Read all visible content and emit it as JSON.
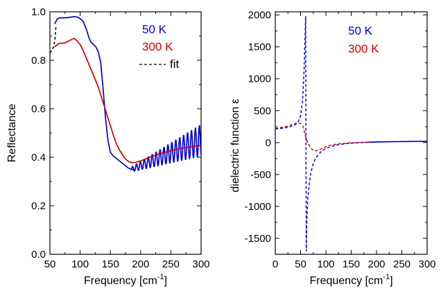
{
  "chart_data": [
    {
      "type": "line",
      "xlabel": "Frequency [cm",
      "xlabel_sup": "-1",
      "xlabel_tail": "]",
      "ylabel": "Reflectance",
      "xlim": [
        50,
        300
      ],
      "ylim": [
        0.0,
        1.0
      ],
      "xticks": [
        50,
        100,
        150,
        200,
        250,
        300
      ],
      "xtick_labels": [
        "50",
        "100",
        "150",
        "200",
        "250",
        "300"
      ],
      "yticks": [
        0.0,
        0.2,
        0.4,
        0.6,
        0.8,
        1.0
      ],
      "ytick_labels": [
        "0.0",
        "0.2",
        "0.4",
        "0.6",
        "0.8",
        "1.0"
      ],
      "legend_position": "top-right",
      "series": [
        {
          "name": "50 K",
          "color": "#0000cc",
          "style": "solid",
          "x": [
            58,
            62,
            66,
            70,
            75,
            80,
            85,
            90,
            95,
            100,
            105,
            110,
            115,
            118,
            122,
            126,
            130,
            134,
            138,
            142,
            146,
            150,
            155,
            160,
            165,
            170,
            175,
            180,
            185,
            190
          ],
          "y": [
            0.95,
            0.97,
            0.975,
            0.975,
            0.975,
            0.976,
            0.978,
            0.98,
            0.978,
            0.972,
            0.96,
            0.93,
            0.89,
            0.875,
            0.865,
            0.855,
            0.835,
            0.79,
            0.68,
            0.56,
            0.47,
            0.42,
            0.405,
            0.395,
            0.385,
            0.375,
            0.365,
            0.355,
            0.35,
            0.345
          ],
          "oscillation": {
            "x_start": 185,
            "x_end": 300,
            "period": 6.5,
            "center_start": 0.35,
            "center_end": 0.47,
            "amplitude_start": 0.01,
            "amplitude_end": 0.065
          }
        },
        {
          "name": "300 K",
          "color": "#cc0000",
          "style": "solid",
          "x": [
            58,
            62,
            66,
            70,
            75,
            80,
            85,
            90,
            95,
            100,
            105,
            110,
            115,
            120,
            125,
            130,
            135,
            140,
            145,
            150,
            155,
            160,
            165,
            170,
            175,
            180,
            185,
            190,
            200,
            210,
            220,
            230,
            240,
            250,
            260,
            270,
            280,
            290,
            300
          ],
          "y": [
            0.855,
            0.865,
            0.87,
            0.87,
            0.872,
            0.878,
            0.885,
            0.89,
            0.88,
            0.865,
            0.84,
            0.81,
            0.78,
            0.75,
            0.72,
            0.69,
            0.65,
            0.61,
            0.57,
            0.53,
            0.49,
            0.455,
            0.43,
            0.41,
            0.393,
            0.382,
            0.378,
            0.378,
            0.385,
            0.395,
            0.405,
            0.413,
            0.42,
            0.427,
            0.433,
            0.438,
            0.442,
            0.446,
            0.449
          ]
        },
        {
          "name": "fit",
          "color": "#000000",
          "style": "dashed",
          "x": [
            50,
            53,
            56,
            58,
            60
          ],
          "y": [
            0.83,
            0.84,
            0.855,
            0.88,
            0.94
          ]
        }
      ]
    },
    {
      "type": "line",
      "xlabel": "Frequency [cm",
      "xlabel_sup": "-1",
      "xlabel_tail": "]",
      "ylabel": "dielectric function ε",
      "xlim": [
        0,
        300
      ],
      "ylim": [
        -1750,
        2050
      ],
      "xticks": [
        0,
        50,
        100,
        150,
        200,
        250,
        300
      ],
      "xtick_labels": [
        "0",
        "50",
        "100",
        "150",
        "200",
        "250",
        "300"
      ],
      "yticks": [
        -1500,
        -1000,
        -500,
        0,
        500,
        1000,
        1500,
        2000
      ],
      "ytick_labels": [
        "-1500",
        "-1000",
        "-500",
        "0",
        "500",
        "1000",
        "1500",
        "2000"
      ],
      "legend_position": "top-right",
      "series": [
        {
          "name": "50 K",
          "color": "#0000cc",
          "style": "dashed",
          "x": [
            0,
            10,
            20,
            30,
            40,
            45,
            50,
            54,
            57,
            59,
            60,
            60.6,
            61.2,
            62,
            64,
            67,
            70,
            75,
            80,
            90,
            100,
            120,
            140,
            160,
            180
          ],
          "y": [
            215,
            220,
            232,
            250,
            285,
            320,
            420,
            660,
            1150,
            1700,
            1980,
            0,
            -1700,
            -1300,
            -900,
            -650,
            -480,
            -330,
            -240,
            -145,
            -90,
            -40,
            -15,
            -2,
            5
          ]
        },
        {
          "name": "50 K",
          "color": "#0000cc",
          "style": "solid",
          "x": [
            180,
            200,
            220,
            240,
            260,
            280,
            300
          ],
          "y": [
            5,
            10,
            13,
            15,
            17,
            19,
            20
          ]
        },
        {
          "name": "300 K",
          "color": "#cc0000",
          "style": "dashed",
          "x": [
            0,
            10,
            20,
            30,
            40,
            45,
            50,
            55,
            58,
            62,
            66,
            70,
            75,
            80,
            85,
            90,
            100,
            110,
            130,
            150,
            170,
            190
          ],
          "y": [
            225,
            235,
            250,
            275,
            300,
            308,
            300,
            250,
            150,
            40,
            -30,
            -85,
            -120,
            -130,
            -120,
            -100,
            -65,
            -38,
            -15,
            -4,
            2,
            6
          ]
        }
      ]
    }
  ]
}
